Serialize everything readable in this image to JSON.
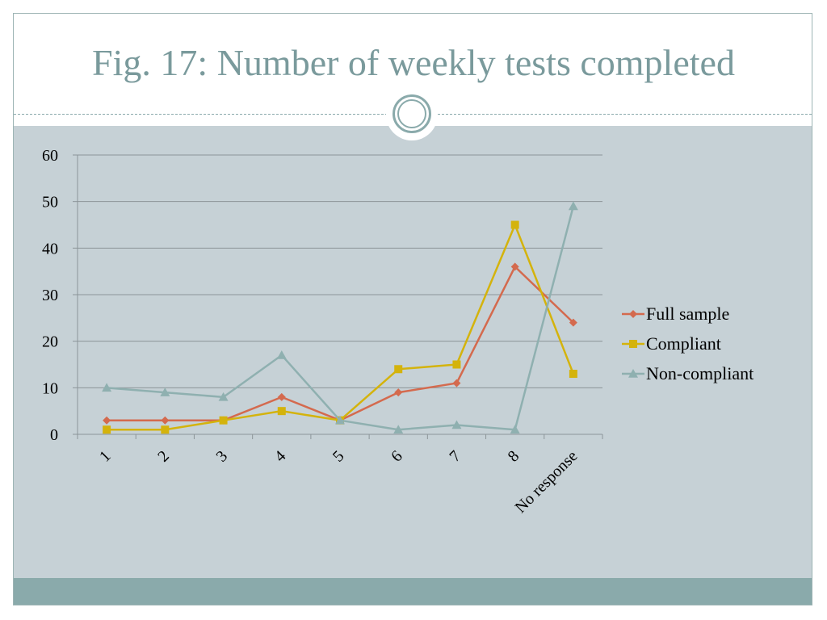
{
  "slide": {
    "title": "Fig. 17: Number of weekly tests completed"
  },
  "colors": {
    "title": "#7a9a9c",
    "panel_background": "#c6d1d6",
    "footer_bar": "#8aaaab",
    "gridline": "#8c9599",
    "full_sample": "#d46a4e",
    "compliant": "#d4b30c",
    "non_compliant": "#8fb0b0"
  },
  "chart_data": {
    "type": "line",
    "title": "",
    "xlabel": "",
    "ylabel": "",
    "categories": [
      "1",
      "2",
      "3",
      "4",
      "5",
      "6",
      "7",
      "8",
      "No response"
    ],
    "ylim": [
      0,
      60
    ],
    "yticks": [
      0,
      10,
      20,
      30,
      40,
      50,
      60
    ],
    "grid": true,
    "legend_position": "right",
    "series": [
      {
        "name": "Full sample",
        "marker": "diamond",
        "color": "#d46a4e",
        "values": [
          3,
          3,
          3,
          8,
          3,
          9,
          11,
          36,
          24
        ]
      },
      {
        "name": "Compliant",
        "marker": "square",
        "color": "#d4b30c",
        "values": [
          1,
          1,
          3,
          5,
          3,
          14,
          15,
          45,
          13
        ]
      },
      {
        "name": "Non-compliant",
        "marker": "triangle",
        "color": "#8fb0b0",
        "values": [
          10,
          9,
          8,
          17,
          3,
          1,
          2,
          1,
          49
        ]
      }
    ]
  }
}
